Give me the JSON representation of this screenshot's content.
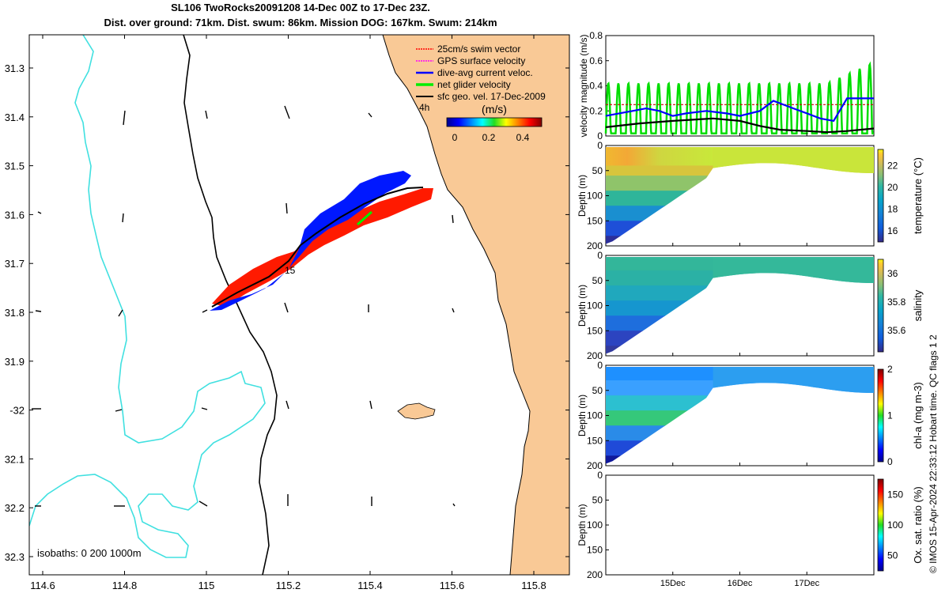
{
  "header": {
    "title_line1": "SL106 TwoRocks20091208 14-Dec 00Z to 17-Dec 23Z.",
    "title_line2": "Dist. over ground: 71km. Dist. swum: 86km. Mission DOG: 167km. Swum: 214km"
  },
  "map": {
    "lon_ticks": [
      "114.6",
      "114.8",
      "115",
      "115.2",
      "115.4",
      "115.6",
      "115.8"
    ],
    "lat_ticks": [
      "31.3",
      "31.4",
      "31.5",
      "31.6",
      "31.7",
      "31.8",
      "31.9",
      "-32",
      "32.1",
      "32.2",
      "32.3"
    ],
    "isobath_note": "isobaths: 0   200  1000m",
    "legend": [
      {
        "label": "25cm/s swim vector",
        "color": "#ff0000"
      },
      {
        "label": "GPS surface velocity",
        "color": "#ff00ff"
      },
      {
        "label": "dive-avg current veloc.",
        "color": "#0000ff"
      },
      {
        "label": "net glider velocity",
        "color": "#00ee00"
      },
      {
        "label": "sfc geo. vel. 17-Dec-2009",
        "color": "#000000"
      }
    ],
    "colorbar_unit": "(m/s)",
    "colorbar_ticks": [
      "0",
      "0.2",
      "0.4"
    ],
    "annotations": [
      "4h",
      "15"
    ],
    "colors": {
      "land": "#f9c996",
      "isobath_200": "#40e0e0",
      "isobath_1000": "#000000"
    }
  },
  "chart_data": [
    {
      "type": "line",
      "ylabel": "velocity magnitude (m/s)",
      "yticks": [
        "0",
        "0.2",
        "0.4",
        "0.6",
        "0.8"
      ],
      "ylim": [
        0,
        0.8
      ],
      "xlim_days": [
        14.0,
        18.0
      ],
      "series": [
        {
          "color": "#00dd00",
          "type": "oscillating",
          "base": 0.0,
          "amp": 0.42,
          "period_h": 3.6
        },
        {
          "color": "#0000ff",
          "x": [
            14.0,
            14.2,
            14.4,
            14.6,
            14.8,
            15.0,
            15.2,
            15.5,
            15.8,
            16.0,
            16.3,
            16.5,
            16.8,
            17.0,
            17.2,
            17.4,
            17.6,
            17.8,
            18.0
          ],
          "y": [
            0.16,
            0.18,
            0.2,
            0.22,
            0.2,
            0.16,
            0.18,
            0.2,
            0.18,
            0.16,
            0.2,
            0.28,
            0.22,
            0.18,
            0.14,
            0.12,
            0.3,
            0.3,
            0.3
          ]
        },
        {
          "color": "#cc0000",
          "type": "dashed",
          "x": [
            14.0,
            18.0
          ],
          "y": [
            0.25,
            0.25
          ]
        },
        {
          "color": "#000000",
          "x": [
            14.0,
            14.5,
            15.0,
            15.3,
            15.6,
            16.0,
            16.3,
            16.6,
            17.0,
            17.3,
            17.6,
            18.0
          ],
          "y": [
            0.07,
            0.1,
            0.12,
            0.13,
            0.14,
            0.12,
            0.08,
            0.05,
            0.04,
            0.03,
            0.04,
            0.06
          ]
        }
      ]
    },
    {
      "type": "heatmap",
      "ylabel": "Depth (m)",
      "yticks": [
        "0",
        "50",
        "100",
        "150",
        "200"
      ],
      "ylim": [
        0,
        200
      ],
      "cbar_label": "temperature (°C)",
      "cbar_ticks": [
        "16",
        "18",
        "20",
        "22"
      ],
      "cbar_range": [
        15,
        23.5
      ],
      "profile": "temperature"
    },
    {
      "type": "heatmap",
      "ylabel": "Depth (m)",
      "yticks": [
        "0",
        "50",
        "100",
        "150",
        "200"
      ],
      "ylim": [
        0,
        200
      ],
      "cbar_label": "salinity",
      "cbar_ticks": [
        "35.6",
        "35.8",
        "36"
      ],
      "cbar_range": [
        35.45,
        36.1
      ],
      "profile": "salinity"
    },
    {
      "type": "heatmap",
      "ylabel": "Depth (m)",
      "yticks": [
        "0",
        "50",
        "100",
        "150",
        "200"
      ],
      "ylim": [
        0,
        200
      ],
      "cbar_label": "chl-a (mg m-3)",
      "cbar_ticks": [
        "0",
        "1",
        "2"
      ],
      "cbar_range": [
        0,
        2
      ],
      "profile": "chla"
    },
    {
      "type": "heatmap",
      "ylabel": "Depth (m)",
      "yticks": [
        "0",
        "50",
        "100",
        "150",
        "200"
      ],
      "ylim": [
        0,
        200
      ],
      "cbar_label": "Ox. sat. ratio (%)",
      "cbar_ticks": [
        "50",
        "100",
        "150"
      ],
      "cbar_range": [
        25,
        175
      ],
      "profile": "empty",
      "xticks": [
        "15Dec",
        "16Dec",
        "17Dec"
      ],
      "xtick_days": [
        15,
        16,
        17
      ]
    }
  ],
  "footer": {
    "credit": "© IMOS 15-Apr-2024 22:33:12 Hobart time. QC flags 1  2"
  }
}
